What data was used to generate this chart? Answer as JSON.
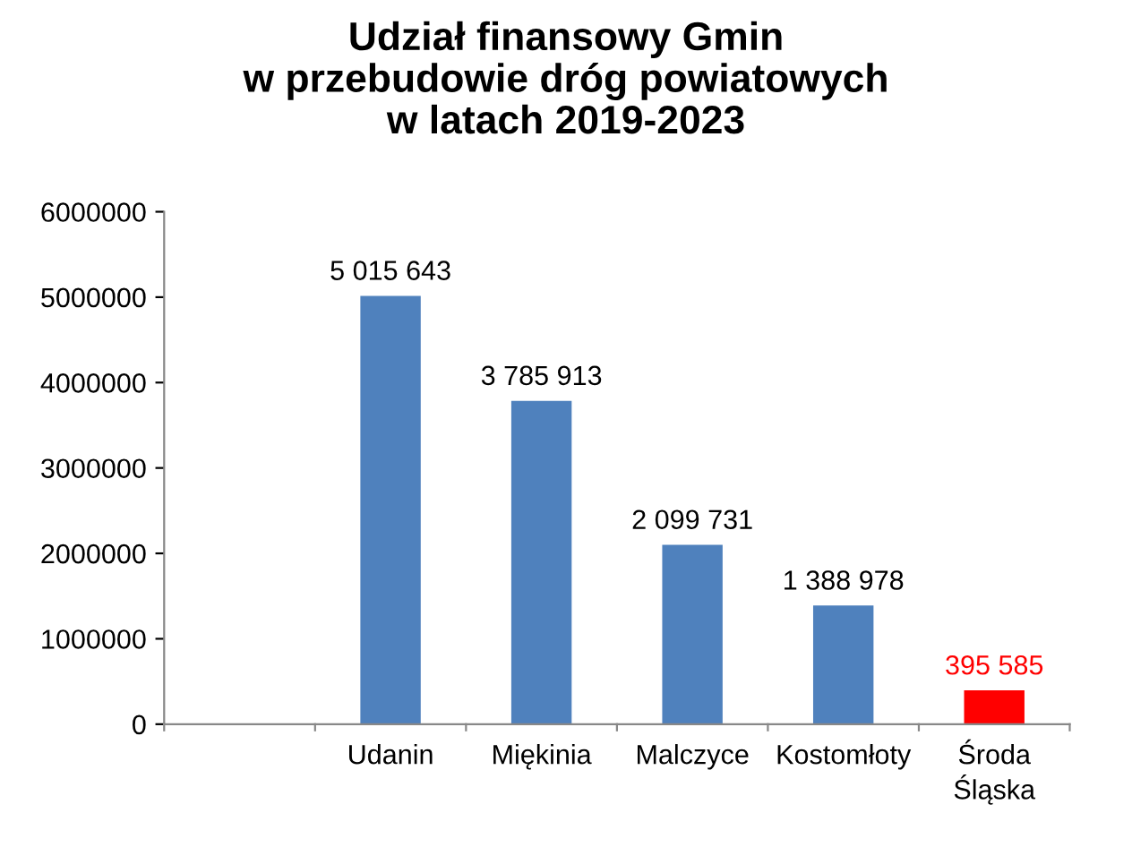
{
  "chart_data": {
    "type": "bar",
    "title": "Udział finansowy Gmin\nw przebudowie dróg powiatowych\nw latach 2019-2023",
    "categories": [
      null,
      "Udanin",
      "Miękinia",
      "Malczyce",
      "Kostomłoty",
      "Środa\nŚląska"
    ],
    "values": [
      null,
      5015643,
      3785913,
      2099731,
      1388978,
      395585
    ],
    "colors": [
      "#4f81bd",
      "#4f81bd",
      "#4f81bd",
      "#4f81bd",
      "#4f81bd",
      "#ff0000"
    ],
    "value_labels": [
      null,
      "5 015 643",
      "3 785 913",
      "2 099 731",
      "1 388 978",
      "395 585"
    ],
    "ylim": [
      0,
      6000000
    ],
    "yticks": [
      0,
      1000000,
      2000000,
      3000000,
      4000000,
      5000000,
      6000000
    ],
    "grid": false,
    "legend": false
  }
}
